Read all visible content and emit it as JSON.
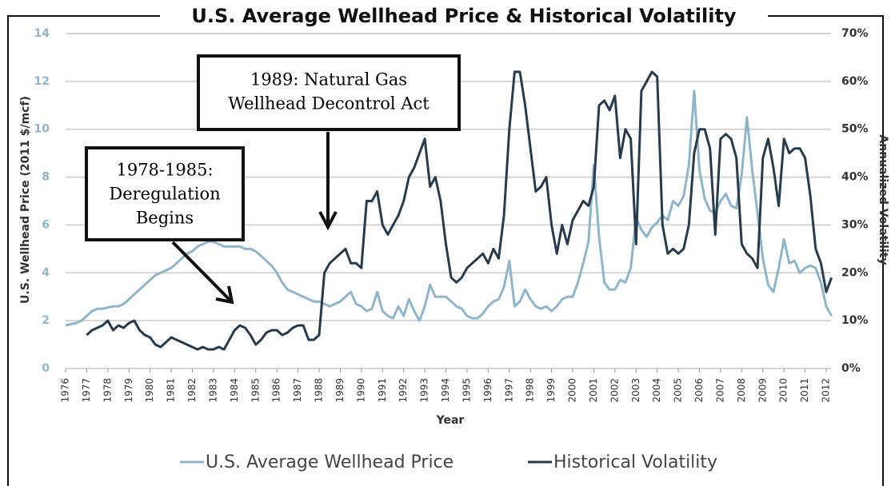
{
  "chart_data": {
    "type": "line",
    "title": "U.S. Average Wellhead Price & Historical Volatility",
    "x_label": "Year",
    "y_label": "U.S. Wellhead Price (2011 $/mcf)",
    "y2_label": "Annualized Volatility",
    "xlim": [
      1976,
      2012
    ],
    "xticks": [
      1976,
      1977,
      1978,
      1979,
      1980,
      1981,
      1982,
      1983,
      1984,
      1985,
      1986,
      1987,
      1988,
      1989,
      1990,
      1991,
      1992,
      1993,
      1994,
      1995,
      1996,
      1997,
      1998,
      1999,
      2000,
      2001,
      2002,
      2003,
      2004,
      2005,
      2006,
      2007,
      2008,
      2009,
      2010,
      2011,
      2012
    ],
    "ylim": [
      0,
      14
    ],
    "yticks": [
      0,
      2,
      4,
      6,
      8,
      10,
      12,
      14
    ],
    "y2lim": [
      0,
      70
    ],
    "y2ticks": [
      {
        "value": 0,
        "label": "0%"
      },
      {
        "value": 10,
        "label": "10%"
      },
      {
        "value": 20,
        "label": "20%"
      },
      {
        "value": 30,
        "label": "30%"
      },
      {
        "value": 40,
        "label": "40%"
      },
      {
        "value": 50,
        "label": "50%"
      },
      {
        "value": 60,
        "label": "60%"
      },
      {
        "value": 70,
        "label": "70%"
      }
    ],
    "grid": true,
    "legend": "bottom",
    "x": [
      1976,
      1976.25,
      1976.5,
      1976.75,
      1977,
      1977.25,
      1977.5,
      1977.75,
      1978,
      1978.25,
      1978.5,
      1978.75,
      1979,
      1979.25,
      1979.5,
      1979.75,
      1980,
      1980.25,
      1980.5,
      1980.75,
      1981,
      1981.25,
      1981.5,
      1981.75,
      1982,
      1982.25,
      1982.5,
      1982.75,
      1983,
      1983.25,
      1983.5,
      1983.75,
      1984,
      1984.25,
      1984.5,
      1984.75,
      1985,
      1985.25,
      1985.5,
      1985.75,
      1986,
      1986.25,
      1986.5,
      1986.75,
      1987,
      1987.25,
      1987.5,
      1987.75,
      1988,
      1988.25,
      1988.5,
      1988.75,
      1989,
      1989.25,
      1989.5,
      1989.75,
      1990,
      1990.25,
      1990.5,
      1990.75,
      1991,
      1991.25,
      1991.5,
      1991.75,
      1992,
      1992.25,
      1992.5,
      1992.75,
      1993,
      1993.25,
      1993.5,
      1993.75,
      1994,
      1994.25,
      1994.5,
      1994.75,
      1995,
      1995.25,
      1995.5,
      1995.75,
      1996,
      1996.25,
      1996.5,
      1996.75,
      1997,
      1997.25,
      1997.5,
      1997.75,
      1998,
      1998.25,
      1998.5,
      1998.75,
      1999,
      1999.25,
      1999.5,
      1999.75,
      2000,
      2000.25,
      2000.5,
      2000.75,
      2001,
      2001.25,
      2001.5,
      2001.75,
      2002,
      2002.25,
      2002.5,
      2002.75,
      2003,
      2003.25,
      2003.5,
      2003.75,
      2004,
      2004.25,
      2004.5,
      2004.75,
      2005,
      2005.25,
      2005.5,
      2005.75,
      2006,
      2006.25,
      2006.5,
      2006.75,
      2007,
      2007.25,
      2007.5,
      2007.75,
      2008,
      2008.25,
      2008.5,
      2008.75,
      2009,
      2009.25,
      2009.5,
      2009.75,
      2010,
      2010.25,
      2010.5,
      2010.75,
      2011,
      2011.25,
      2011.5,
      2011.75,
      2012,
      2012.25
    ],
    "series": [
      {
        "name": "U.S. Average Wellhead Price",
        "color": "#8fb5cb",
        "values": [
          1.8,
          1.85,
          1.9,
          2.0,
          2.2,
          2.4,
          2.5,
          2.5,
          2.55,
          2.6,
          2.6,
          2.7,
          2.9,
          3.1,
          3.3,
          3.5,
          3.7,
          3.9,
          4.0,
          4.1,
          4.2,
          4.4,
          4.6,
          4.8,
          4.9,
          5.1,
          5.2,
          5.3,
          5.3,
          5.2,
          5.1,
          5.1,
          5.1,
          5.1,
          5.0,
          5.0,
          4.9,
          4.7,
          4.5,
          4.3,
          4.0,
          3.6,
          3.3,
          3.2,
          3.1,
          3.0,
          2.9,
          2.8,
          2.8,
          2.7,
          2.6,
          2.7,
          2.8,
          3.0,
          3.2,
          2.7,
          2.6,
          2.4,
          2.5,
          3.2,
          2.4,
          2.2,
          2.1,
          2.6,
          2.2,
          2.9,
          2.4,
          2.0,
          2.6,
          3.5,
          3.0,
          3.0,
          3.0,
          2.8,
          2.6,
          2.5,
          2.2,
          2.1,
          2.1,
          2.3,
          2.6,
          2.8,
          2.9,
          3.4,
          4.5,
          2.6,
          2.8,
          3.3,
          2.9,
          2.6,
          2.5,
          2.6,
          2.4,
          2.6,
          2.9,
          3.0,
          3.0,
          3.6,
          4.4,
          5.3,
          8.5,
          5.5,
          3.6,
          3.3,
          3.3,
          3.7,
          3.6,
          4.2,
          6.3,
          5.8,
          5.5,
          5.9,
          6.1,
          6.4,
          6.2,
          7.0,
          6.8,
          7.2,
          8.5,
          11.6,
          8.3,
          7.1,
          6.6,
          6.5,
          7.0,
          7.3,
          6.8,
          6.7,
          8.1,
          10.5,
          8.3,
          6.5,
          4.6,
          3.5,
          3.2,
          4.2,
          5.4,
          4.4,
          4.5,
          4.0,
          4.2,
          4.3,
          4.2,
          3.6,
          2.6,
          2.2
        ]
      },
      {
        "name": "Historical Volatility",
        "color": "#263b4b",
        "axis": "y2",
        "values": [
          null,
          null,
          null,
          null,
          7,
          8,
          8.5,
          9,
          10,
          8,
          9,
          8.5,
          9.5,
          10,
          8,
          7,
          6.5,
          5,
          4.5,
          5.5,
          6.5,
          6,
          5.5,
          5,
          4.5,
          4,
          4.5,
          4,
          4,
          4.5,
          4,
          6,
          8,
          9,
          8.5,
          7,
          5,
          6,
          7.5,
          8,
          8,
          7,
          7.5,
          8.5,
          9,
          9,
          6,
          6,
          7,
          20,
          22,
          23,
          24,
          25,
          22,
          22,
          21,
          35,
          35,
          37,
          30,
          28,
          30,
          32,
          35,
          40,
          42,
          45,
          48,
          38,
          40,
          35,
          26,
          19,
          18,
          19,
          21,
          22,
          23,
          24,
          22,
          25,
          23,
          32,
          50,
          62,
          62,
          55,
          46,
          37,
          38,
          40,
          30,
          24,
          30,
          26,
          31,
          33,
          35,
          34,
          38,
          55,
          56,
          54,
          57,
          44,
          50,
          48,
          26,
          58,
          60,
          62,
          61,
          30,
          24,
          25,
          24,
          25,
          30,
          45,
          50,
          50,
          46,
          28,
          48,
          49,
          48,
          44,
          26,
          24,
          23,
          21,
          44,
          48,
          42,
          34,
          48,
          45,
          46,
          46,
          44,
          36,
          25,
          22,
          16,
          19
        ]
      }
    ],
    "annotations": [
      {
        "lines": [
          "1989: Natural Gas",
          "Wellhead Decontrol Act"
        ]
      },
      {
        "lines": [
          "1978-1985:",
          "Deregulation",
          "Begins"
        ]
      }
    ]
  }
}
